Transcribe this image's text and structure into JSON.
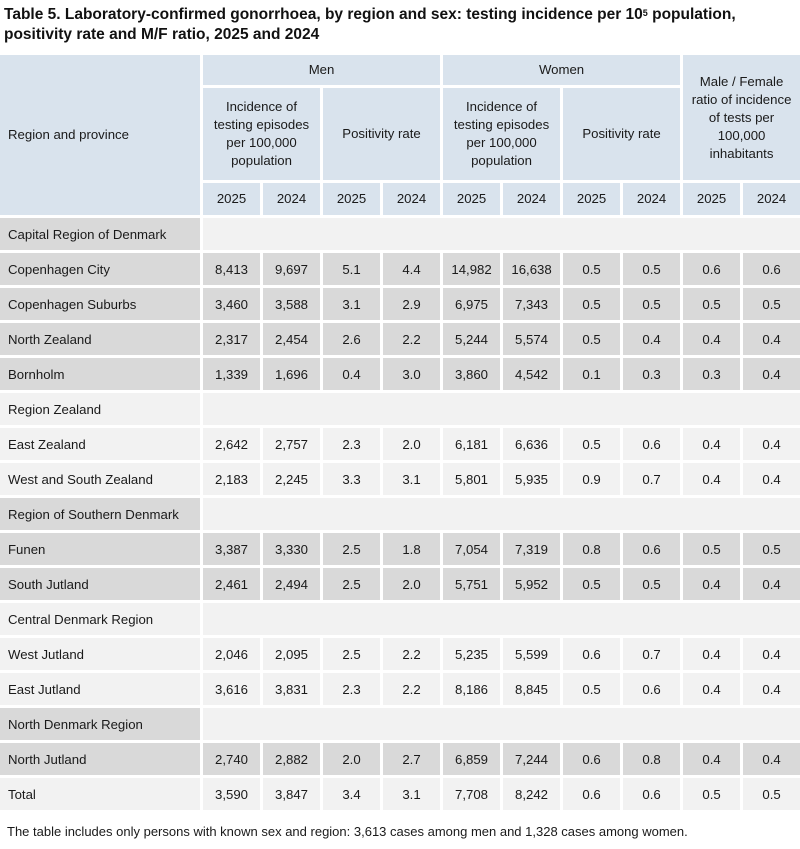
{
  "title": {
    "line1a": "Table 5. Laboratory-confirmed gonorrhoea, by region and sex: testing incidence per 10",
    "sup": "5",
    "line1b": " population,",
    "line2": "positivity rate and M/F ratio, 2025 and 2024"
  },
  "header": {
    "region_col": "Region and province",
    "men": "Men",
    "women": "Women",
    "ratio": "Male / Female ratio of incidence of tests per 100,000 inhabitants",
    "incidence": "Incidence of testing episodes per 100,000 population",
    "positivity": "Positivity rate",
    "years": [
      "2025",
      "2024",
      "2025",
      "2024",
      "2025",
      "2024",
      "2025",
      "2024",
      "2025",
      "2024"
    ]
  },
  "rows": [
    {
      "type": "region",
      "shade": "gray",
      "label": "Capital Region of Denmark"
    },
    {
      "type": "data",
      "shade": "gray",
      "label": "Copenhagen City",
      "values": [
        "8,413",
        "9,697",
        "5.1",
        "4.4",
        "14,982",
        "16,638",
        "0.5",
        "0.5",
        "0.6",
        "0.6"
      ]
    },
    {
      "type": "data",
      "shade": "gray",
      "label": "Copenhagen Suburbs",
      "values": [
        "3,460",
        "3,588",
        "3.1",
        "2.9",
        "6,975",
        "7,343",
        "0.5",
        "0.5",
        "0.5",
        "0.5"
      ]
    },
    {
      "type": "data",
      "shade": "gray",
      "label": "North Zealand",
      "values": [
        "2,317",
        "2,454",
        "2.6",
        "2.2",
        "5,244",
        "5,574",
        "0.5",
        "0.4",
        "0.4",
        "0.4"
      ]
    },
    {
      "type": "data",
      "shade": "gray",
      "label": "Bornholm",
      "values": [
        "1,339",
        "1,696",
        "0.4",
        "3.0",
        "3,860",
        "4,542",
        "0.1",
        "0.3",
        "0.3",
        "0.4"
      ]
    },
    {
      "type": "region",
      "shade": "white",
      "label": "Region Zealand"
    },
    {
      "type": "data",
      "shade": "white",
      "label": "East Zealand",
      "values": [
        "2,642",
        "2,757",
        "2.3",
        "2.0",
        "6,181",
        "6,636",
        "0.5",
        "0.6",
        "0.4",
        "0.4"
      ]
    },
    {
      "type": "data",
      "shade": "white",
      "label": "West and South Zealand",
      "values": [
        "2,183",
        "2,245",
        "3.3",
        "3.1",
        "5,801",
        "5,935",
        "0.9",
        "0.7",
        "0.4",
        "0.4"
      ]
    },
    {
      "type": "region",
      "shade": "gray",
      "label": "Region of Southern Denmark"
    },
    {
      "type": "data",
      "shade": "gray",
      "label": "Funen",
      "values": [
        "3,387",
        "3,330",
        "2.5",
        "1.8",
        "7,054",
        "7,319",
        "0.8",
        "0.6",
        "0.5",
        "0.5"
      ]
    },
    {
      "type": "data",
      "shade": "gray",
      "label": "South Jutland",
      "values": [
        "2,461",
        "2,494",
        "2.5",
        "2.0",
        "5,751",
        "5,952",
        "0.5",
        "0.5",
        "0.4",
        "0.4"
      ]
    },
    {
      "type": "region",
      "shade": "white",
      "label": "Central Denmark Region"
    },
    {
      "type": "data",
      "shade": "white",
      "label": "West Jutland",
      "values": [
        "2,046",
        "2,095",
        "2.5",
        "2.2",
        "5,235",
        "5,599",
        "0.6",
        "0.7",
        "0.4",
        "0.4"
      ]
    },
    {
      "type": "data",
      "shade": "white",
      "label": "East Jutland",
      "values": [
        "3,616",
        "3,831",
        "2.3",
        "2.2",
        "8,186",
        "8,845",
        "0.5",
        "0.6",
        "0.4",
        "0.4"
      ]
    },
    {
      "type": "region",
      "shade": "gray",
      "label": "North Denmark Region"
    },
    {
      "type": "data",
      "shade": "gray",
      "label": "North Jutland",
      "values": [
        "2,740",
        "2,882",
        "2.0",
        "2.7",
        "6,859",
        "7,244",
        "0.6",
        "0.8",
        "0.4",
        "0.4"
      ]
    },
    {
      "type": "data",
      "shade": "white",
      "label": "Total",
      "values": [
        "3,590",
        "3,847",
        "3.4",
        "3.1",
        "7,708",
        "8,242",
        "0.6",
        "0.6",
        "0.5",
        "0.5"
      ]
    }
  ],
  "footnote": "The table includes only persons with known sex and region: 3,613 cases among men and 1,328 cases among women."
}
